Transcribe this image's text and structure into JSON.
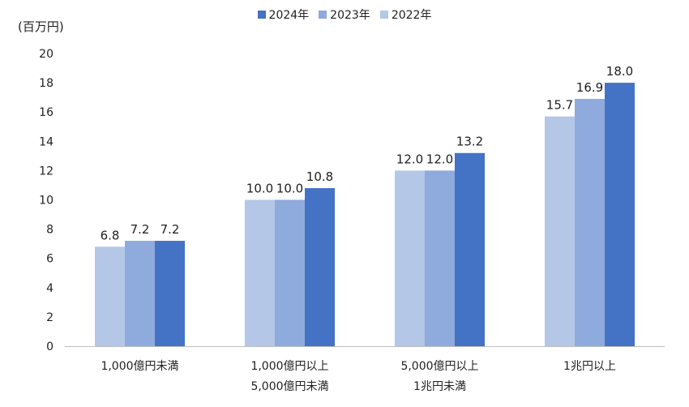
{
  "chart_data": {
    "type": "bar",
    "unit_label": "(百万円)",
    "categories": [
      [
        "1,000億円未満"
      ],
      [
        "1,000億円以上",
        "5,000億円未満"
      ],
      [
        "5,000億円以上",
        "1兆円未満"
      ],
      [
        "1兆円以上"
      ]
    ],
    "series": [
      {
        "name": "2022年",
        "color": "#b4c7e7",
        "values": [
          6.8,
          10.0,
          12.0,
          15.7
        ],
        "labels": [
          "6.8",
          "10.0",
          "12.0",
          "15.7"
        ]
      },
      {
        "name": "2023年",
        "color": "#8faadc",
        "values": [
          7.2,
          10.0,
          12.0,
          16.9
        ],
        "labels": [
          "7.2",
          "10.0",
          "12.0",
          "16.9"
        ]
      },
      {
        "name": "2024年",
        "color": "#4472c4",
        "values": [
          7.2,
          10.8,
          13.2,
          18.0
        ],
        "labels": [
          "7.2",
          "10.8",
          "13.2",
          "18.0"
        ]
      }
    ],
    "legend_order": [
      "2024年",
      "2023年",
      "2022年"
    ],
    "ylim": [
      0,
      20
    ],
    "yticks": [
      "0",
      "2",
      "4",
      "6",
      "8",
      "10",
      "12",
      "14",
      "16",
      "18",
      "20"
    ],
    "grid": false,
    "legend_position": "top"
  }
}
